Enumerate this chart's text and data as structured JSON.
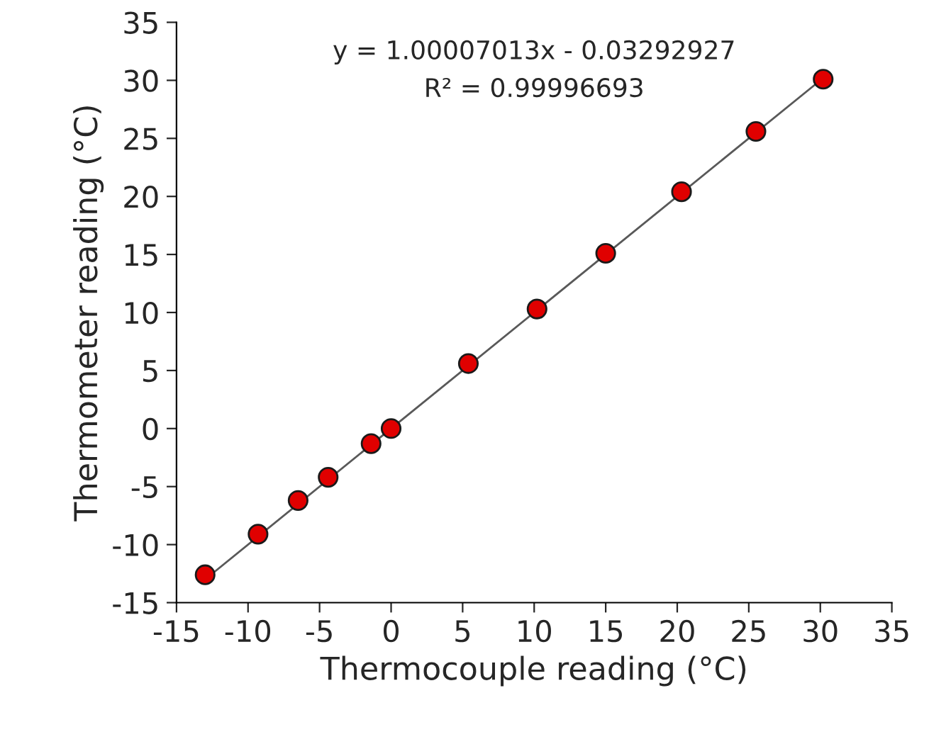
{
  "chart_data": {
    "type": "scatter",
    "xlabel": "Thermocouple reading (°C)",
    "ylabel": "Thermometer reading (°C)",
    "xlim": [
      -15,
      35
    ],
    "ylim": [
      -15,
      35
    ],
    "xticks": [
      -15,
      -10,
      -5,
      0,
      5,
      10,
      15,
      20,
      25,
      30,
      35
    ],
    "yticks": [
      -15,
      -10,
      -5,
      0,
      5,
      10,
      15,
      20,
      25,
      30,
      35
    ],
    "grid": false,
    "marker": "circle",
    "series": [
      {
        "type": "line",
        "marker": "none",
        "color": "#595959",
        "x": [
          -13,
          30.3
        ],
        "values": [
          -13,
          30.3
        ]
      },
      {
        "color": "#e00000",
        "x": [
          -13.0,
          -9.3,
          -6.5,
          -4.4,
          -1.4,
          0,
          5.4,
          10.2,
          15.0,
          20.3,
          25.5,
          30.2
        ],
        "values": [
          -12.6,
          -9.1,
          -6.2,
          -4.2,
          -1.3,
          0,
          5.6,
          10.3,
          15.1,
          20.4,
          25.6,
          30.1
        ]
      }
    ],
    "annotations": [
      "y = 1.00007013x - 0.03292927",
      "R² = 0.99996693"
    ]
  }
}
